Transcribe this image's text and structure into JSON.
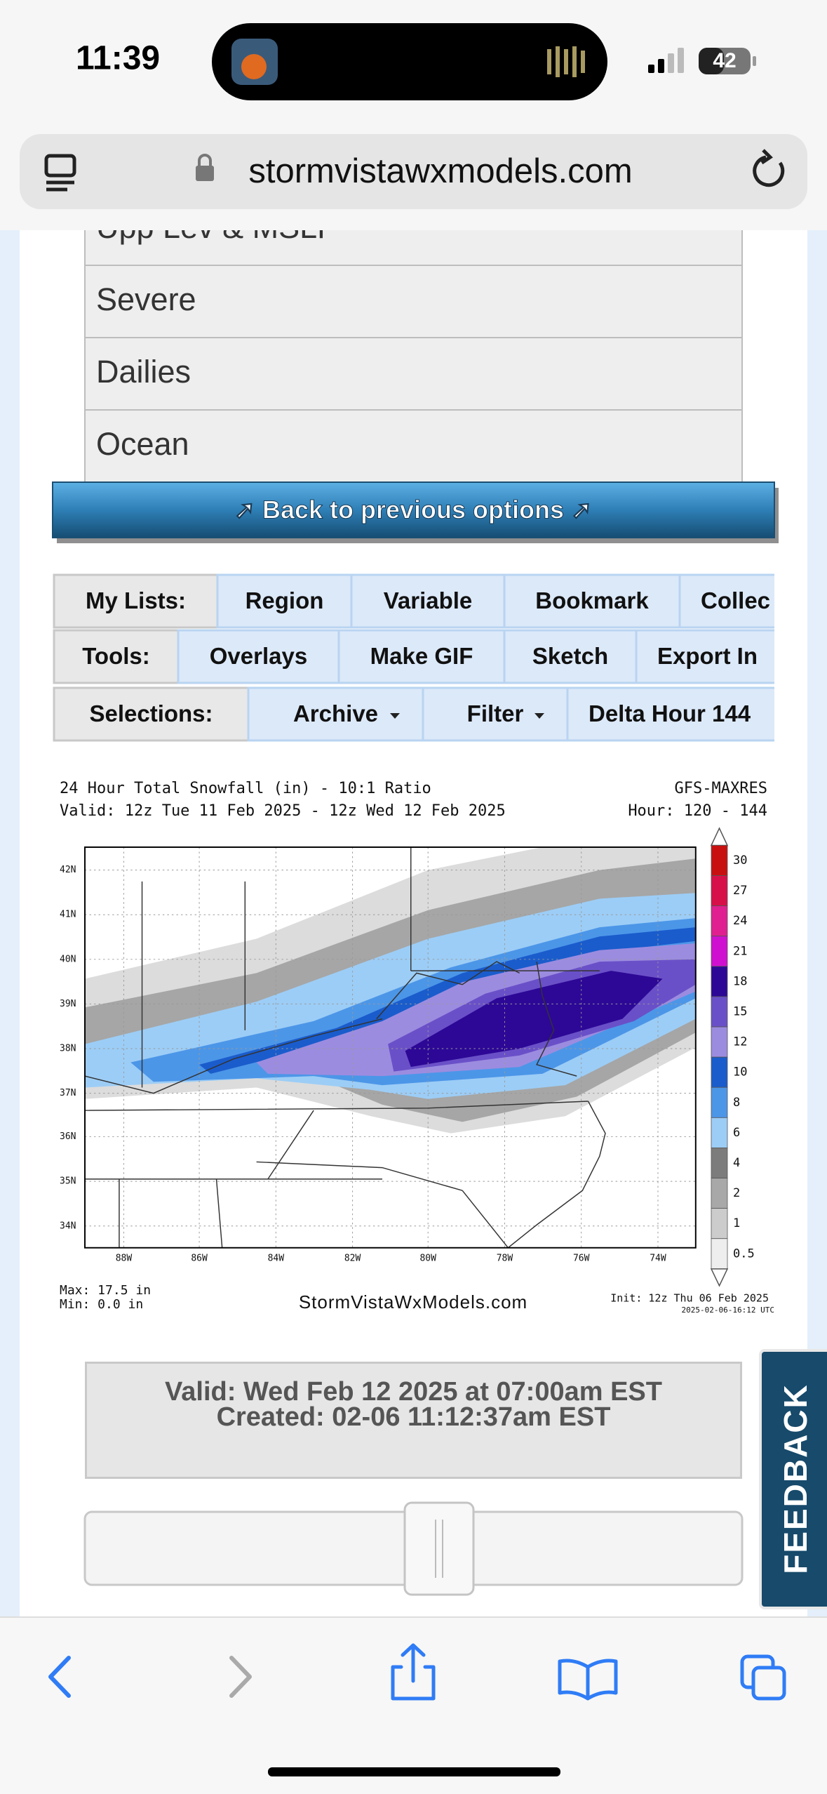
{
  "status_bar": {
    "time": "11:39",
    "battery": "42"
  },
  "browser": {
    "url": "stormvistawxmodels.com"
  },
  "menu": {
    "items": [
      "Upp Lev & MSLP",
      "Severe",
      "Dailies",
      "Ocean"
    ]
  },
  "back_button": "➚ Back to previous options ➚",
  "tab_rows": [
    {
      "label": "My Lists:",
      "items": [
        "Region",
        "Variable",
        "Bookmark",
        "Collec"
      ]
    },
    {
      "label": "Tools:",
      "items": [
        "Overlays",
        "Make GIF",
        "Sketch",
        "Export In"
      ]
    },
    {
      "label": "Selections:",
      "items": [
        "Archive",
        "Filter",
        "Delta Hour 144"
      ]
    }
  ],
  "map": {
    "title": "24 Hour Total Snowfall (in) - 10:1 Ratio",
    "valid": "Valid: 12z Tue 11 Feb 2025 - 12z Wed 12 Feb 2025",
    "model": "GFS-MAXRES",
    "hour": "Hour: 120 - 144",
    "lat_labels": [
      "42N",
      "41N",
      "40N",
      "39N",
      "38N",
      "37N",
      "36N",
      "35N",
      "34N"
    ],
    "lon_labels": [
      "88W",
      "86W",
      "84W",
      "82W",
      "80W",
      "78W",
      "76W",
      "74W"
    ],
    "legend": {
      "labels": [
        30,
        27,
        24,
        21,
        18,
        15,
        12,
        10,
        8,
        6,
        4,
        2,
        1,
        0.5
      ],
      "colors": [
        "#c81010",
        "#d8104a",
        "#e02090",
        "#d010d0",
        "#2d0896",
        "#6a50c8",
        "#9c8ce0",
        "#1a5ccc",
        "#4c96e8",
        "#9ccdf6",
        "#7c7c7c",
        "#a8a8a8",
        "#cccccc",
        "#eeeeee"
      ]
    },
    "max": "Max: 17.5 in",
    "min": "Min: 0.0 in",
    "site": "StormVistaWxModels.com",
    "init": "Init: 12z Thu 06 Feb 2025",
    "timestamp": "2025-02-06-16:12 UTC"
  },
  "valid_box": {
    "valid": "Valid: Wed Feb 12 2025 at 07:00am EST",
    "created": "Created: 02-06 11:12:37am EST"
  },
  "feedback": "FEEDBACK"
}
